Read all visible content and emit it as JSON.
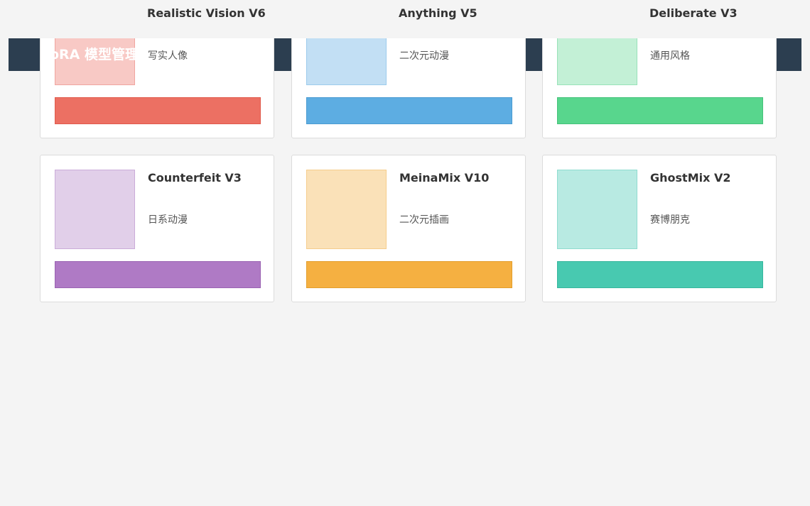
{
  "header": {
    "title": "oRA 模型管理"
  },
  "cards": [
    {
      "title": "Realistic Vision V6",
      "subtitle": "写实人像"
    },
    {
      "title": "Anything V5",
      "subtitle": "二次元动漫"
    },
    {
      "title": "Deliberate V3",
      "subtitle": "通用风格"
    },
    {
      "title": "Counterfeit V3",
      "subtitle": "日系动漫"
    },
    {
      "title": "MeinaMix V10",
      "subtitle": "二次元插画"
    },
    {
      "title": "GhostMix V2",
      "subtitle": "赛博朋克"
    }
  ]
}
